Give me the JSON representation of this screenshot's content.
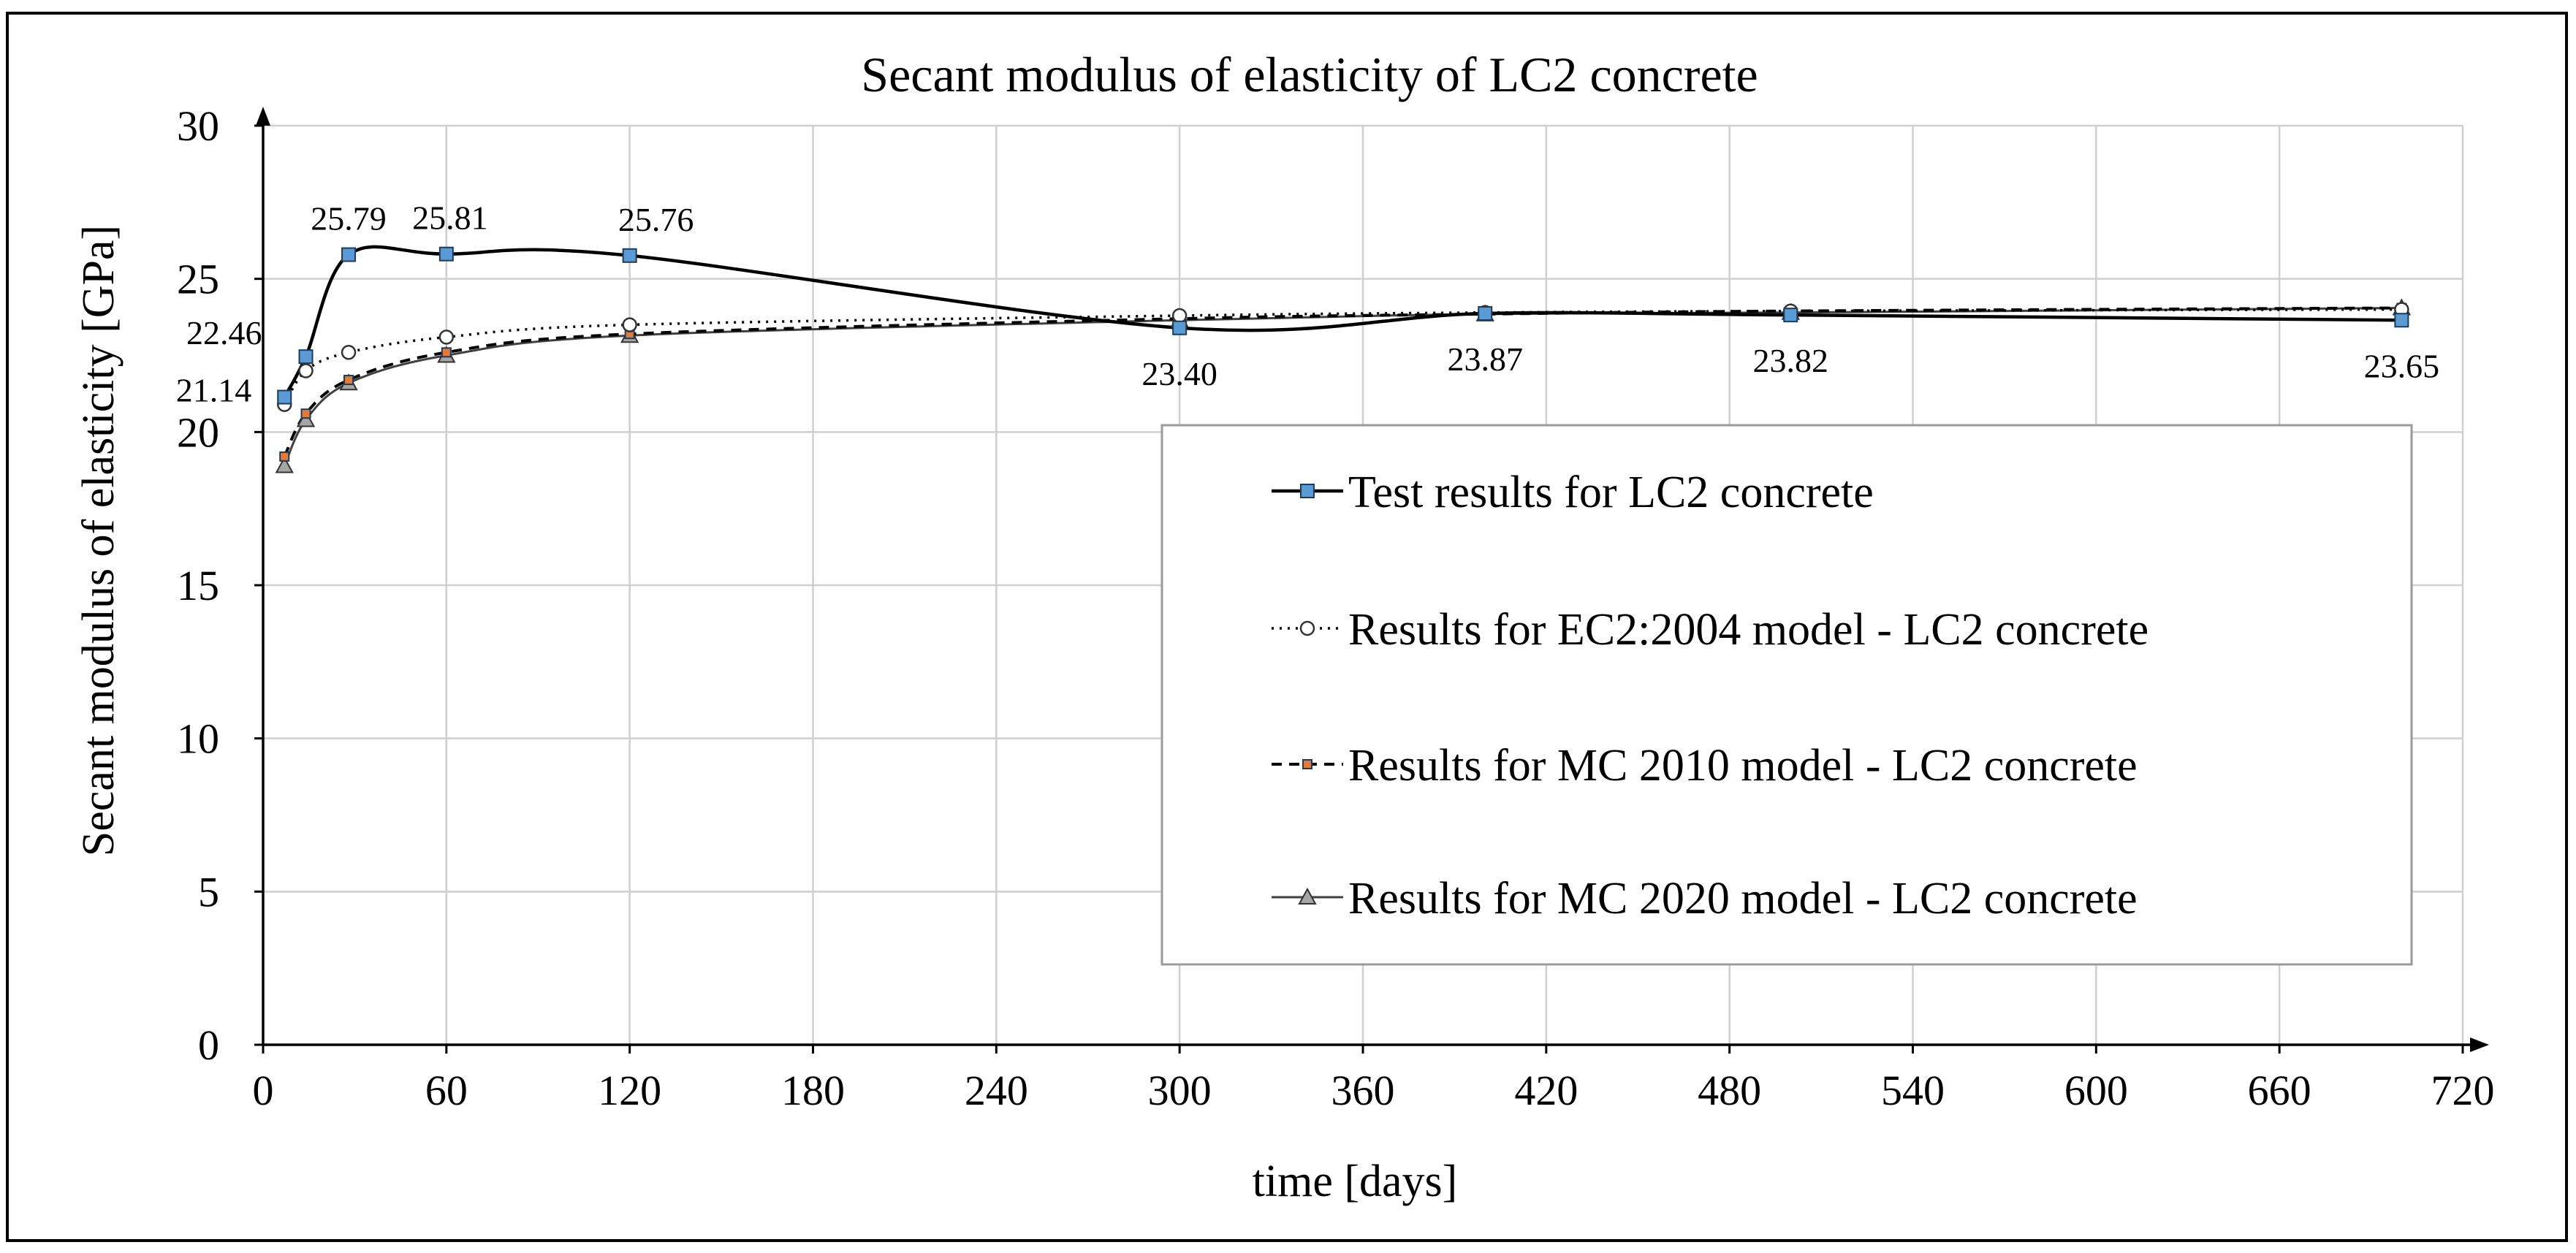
{
  "chart_data": {
    "type": "line",
    "title": "Secant modulus of elasticity of LC2 concrete",
    "xlabel": "time [days]",
    "ylabel": "Secant modulus of elasticity [GPa]",
    "xlim": [
      0,
      720
    ],
    "ylim": [
      0,
      30
    ],
    "xticks": [
      0,
      60,
      120,
      180,
      240,
      300,
      360,
      420,
      480,
      540,
      600,
      660,
      720
    ],
    "yticks": [
      0,
      5,
      10,
      15,
      20,
      25,
      30
    ],
    "grid": true,
    "legend_position": "lower-right",
    "series": [
      {
        "name": "Test results for LC2 concrete",
        "style": "solid-square",
        "color": "#000000",
        "marker_color": "#5b9bd5",
        "x": [
          7,
          14,
          28,
          60,
          120,
          300,
          400,
          500,
          700
        ],
        "values": [
          21.14,
          22.46,
          25.79,
          25.81,
          25.76,
          23.4,
          23.87,
          23.82,
          23.65
        ],
        "labels": [
          "21.14",
          "22.46",
          "25.79",
          "25.81",
          "25.76",
          "23.40",
          "23.87",
          "23.82",
          "23.65"
        ]
      },
      {
        "name": "Results for EC2:2004 model - LC2 concrete",
        "style": "dotted-circle",
        "color": "#000000",
        "marker_color": "#ffffff",
        "x": [
          7,
          14,
          28,
          60,
          120,
          300,
          400,
          500,
          700
        ],
        "values": [
          20.9,
          22.0,
          22.6,
          23.1,
          23.5,
          23.8,
          23.9,
          23.95,
          24.0
        ]
      },
      {
        "name": "Results for MC 2010 model - LC2 concrete",
        "style": "dashed-square",
        "color": "#000000",
        "marker_color": "#e07b39",
        "x": [
          7,
          14,
          28,
          60,
          120,
          300,
          400,
          500,
          700
        ],
        "values": [
          19.2,
          20.6,
          21.7,
          22.6,
          23.2,
          23.7,
          23.85,
          23.95,
          24.05
        ]
      },
      {
        "name": "Results for MC 2020 model - LC2 concrete",
        "style": "solid-triangle",
        "color": "#404040",
        "marker_color": "#a6a6a6",
        "x": [
          7,
          14,
          28,
          60,
          120,
          300,
          400,
          500,
          700
        ],
        "values": [
          18.9,
          20.4,
          21.6,
          22.5,
          23.15,
          23.65,
          23.85,
          23.9,
          24.05
        ]
      }
    ]
  }
}
